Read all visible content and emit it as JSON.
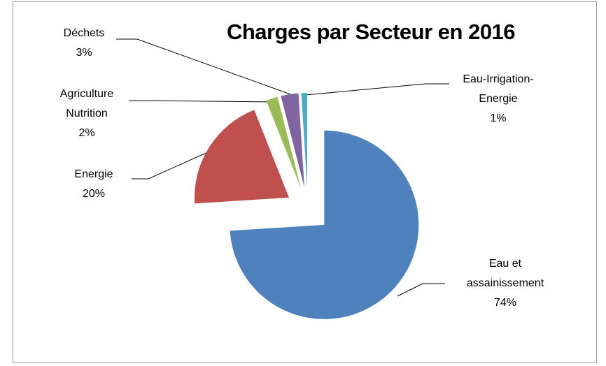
{
  "chart_data": {
    "type": "pie",
    "title": "Charges par Secteur en 2016",
    "categories": [
      "Eau et assainissement",
      "Energie",
      "Agriculture Nutrition",
      "Déchets",
      "Eau-Irrigation-Energie"
    ],
    "values": [
      74,
      20,
      2,
      3,
      1
    ],
    "value_labels": [
      "74%",
      "20%",
      "2%",
      "3%",
      "1%"
    ],
    "colors": [
      "#4f81bd",
      "#c0504d",
      "#9bbb59",
      "#8064a2",
      "#4bacc6"
    ]
  }
}
